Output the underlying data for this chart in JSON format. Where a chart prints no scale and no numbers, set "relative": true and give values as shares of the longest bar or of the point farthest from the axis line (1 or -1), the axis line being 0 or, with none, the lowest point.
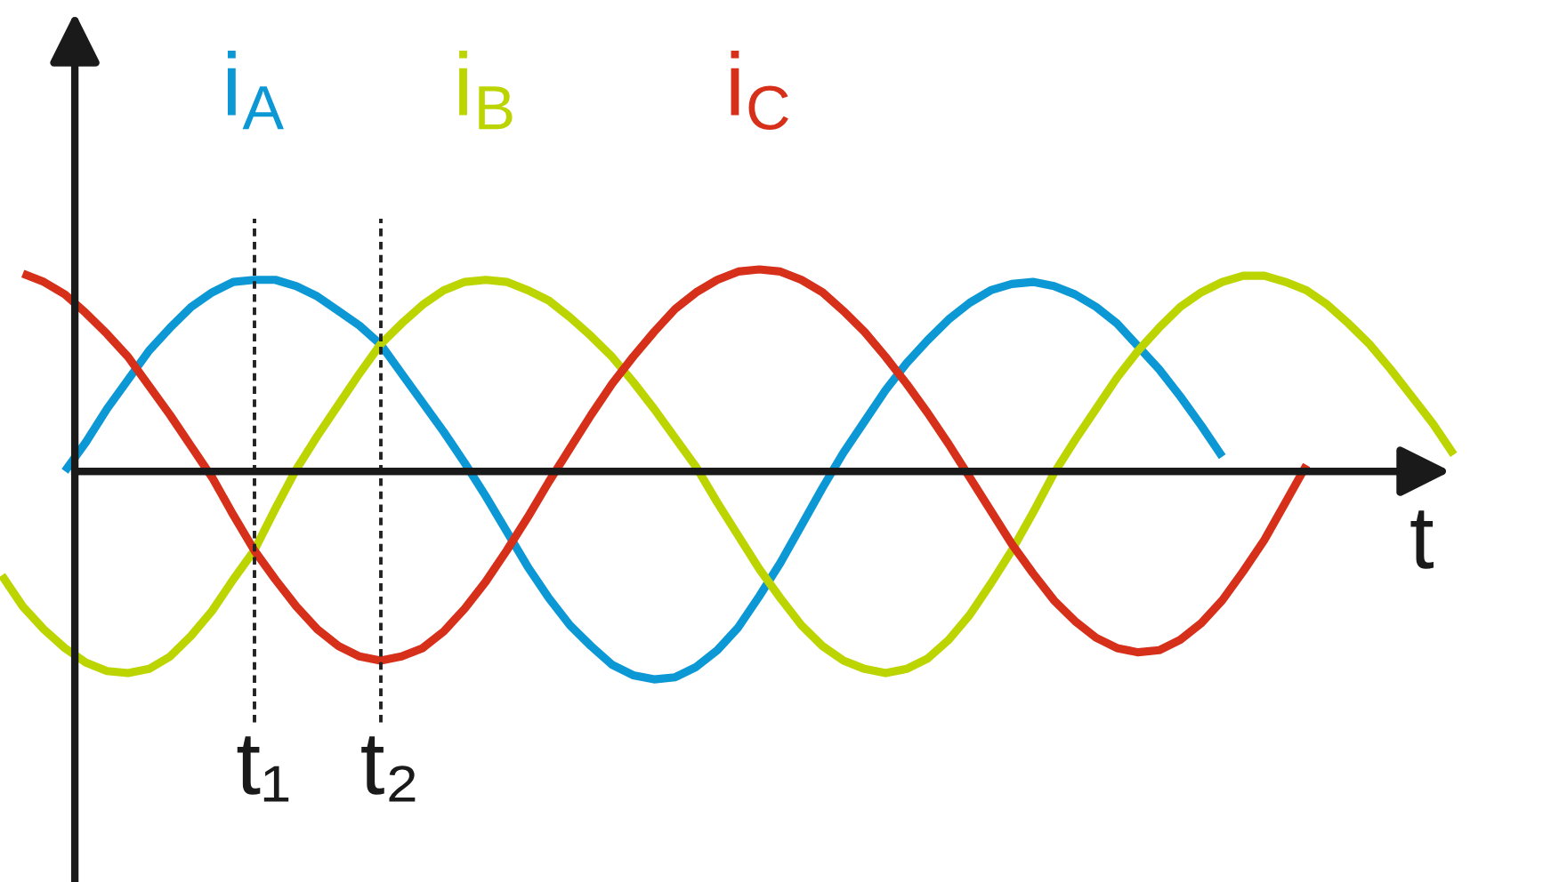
{
  "chart_data": {
    "type": "line",
    "relative": true,
    "xlabel": "t",
    "categories": [
      null,
      null,
      null,
      null,
      null,
      null,
      null,
      null,
      null,
      null,
      null,
      null,
      null,
      null,
      null,
      null,
      null,
      null,
      null,
      null,
      null,
      null,
      null,
      null,
      null,
      null,
      null,
      null,
      null,
      null,
      null,
      null,
      null,
      null,
      null,
      null,
      null,
      null,
      null,
      null,
      null,
      null,
      null,
      null,
      null,
      null,
      null,
      null,
      null,
      null,
      null,
      null,
      null,
      null,
      null,
      null,
      null,
      null,
      null,
      null,
      null,
      null,
      null,
      null,
      null,
      null,
      null,
      null,
      null,
      null
    ],
    "series": [
      {
        "name": "i$_{A}$",
        "color": "#0b98d4",
        "values": [
          null,
          null,
          null,
          0.0,
          0.14,
          0.3,
          0.44,
          0.58,
          0.69,
          0.79,
          0.86,
          0.91,
          0.92,
          0.92,
          0.89,
          0.84,
          0.77,
          0.7,
          0.61,
          0.47,
          0.33,
          0.19,
          0.04,
          -0.12,
          -0.29,
          -0.46,
          -0.61,
          -0.74,
          -0.84,
          -0.93,
          -0.98,
          -1.0,
          -0.99,
          -0.94,
          -0.86,
          -0.75,
          -0.6,
          -0.44,
          -0.26,
          -0.08,
          0.09,
          0.24,
          0.39,
          0.52,
          0.63,
          0.73,
          0.81,
          0.87,
          0.9,
          0.91,
          0.89,
          0.85,
          0.79,
          0.71,
          0.6,
          0.49,
          0.36,
          0.22,
          0.07,
          null,
          null,
          null,
          null,
          null,
          null,
          null,
          null,
          null,
          null,
          null
        ]
      },
      {
        "name": "i$_{B}$",
        "color": "#bcd500",
        "values": [
          -0.5,
          -0.65,
          -0.76,
          -0.85,
          -0.92,
          -0.96,
          -0.97,
          -0.95,
          -0.89,
          -0.79,
          -0.67,
          -0.52,
          -0.38,
          -0.18,
          0.01,
          0.17,
          0.32,
          0.47,
          0.61,
          0.71,
          0.8,
          0.87,
          0.91,
          0.92,
          0.91,
          0.87,
          0.82,
          0.74,
          0.65,
          0.55,
          0.43,
          0.3,
          0.16,
          0.02,
          -0.15,
          -0.31,
          -0.47,
          -0.61,
          -0.74,
          -0.84,
          -0.91,
          -0.95,
          -0.97,
          -0.95,
          -0.9,
          -0.81,
          -0.69,
          -0.54,
          -0.38,
          -0.2,
          -0.01,
          0.15,
          0.3,
          0.45,
          0.58,
          0.69,
          0.79,
          0.86,
          0.91,
          0.94,
          0.94,
          0.91,
          0.87,
          0.8,
          0.71,
          0.61,
          0.49,
          0.36,
          0.23,
          0.08
        ]
      },
      {
        "name": "i$_{C}$",
        "color": "#d6301b",
        "values": [
          null,
          0.95,
          0.91,
          0.85,
          0.76,
          0.66,
          0.55,
          0.41,
          0.27,
          0.12,
          -0.03,
          -0.21,
          -0.38,
          -0.52,
          -0.65,
          -0.76,
          -0.84,
          -0.89,
          -0.91,
          -0.89,
          -0.85,
          -0.77,
          -0.66,
          -0.53,
          -0.38,
          -0.22,
          -0.05,
          0.11,
          0.27,
          0.42,
          0.55,
          0.67,
          0.78,
          0.86,
          0.92,
          0.96,
          0.97,
          0.96,
          0.92,
          0.86,
          0.77,
          0.67,
          0.55,
          0.42,
          0.28,
          0.13,
          -0.03,
          -0.19,
          -0.35,
          -0.49,
          -0.62,
          -0.72,
          -0.8,
          -0.85,
          -0.87,
          -0.86,
          -0.81,
          -0.73,
          -0.62,
          -0.48,
          -0.33,
          -0.15,
          0.03,
          null,
          null,
          null,
          null,
          null,
          null,
          null
        ]
      }
    ],
    "annotations": [
      "t₁",
      "t₂"
    ]
  }
}
